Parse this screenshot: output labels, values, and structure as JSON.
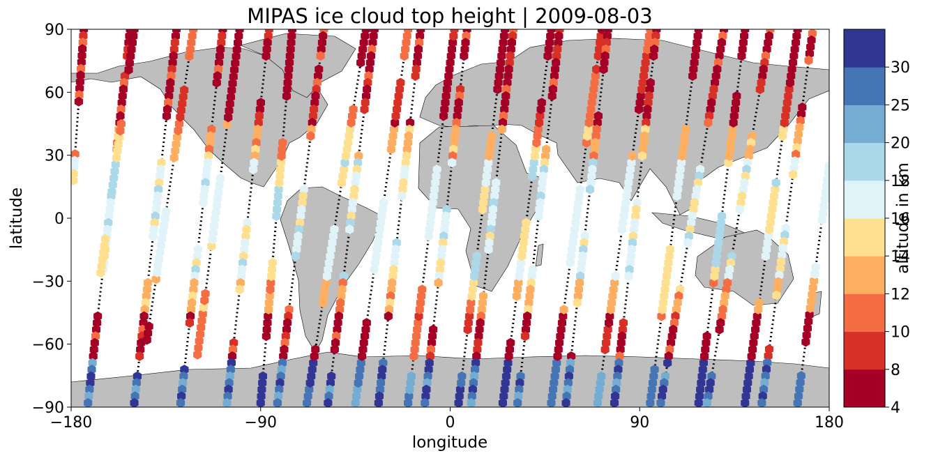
{
  "chart_data": {
    "type": "scatter",
    "title": "MIPAS ice cloud top height | 2009-08-03",
    "xlabel": "longitude",
    "ylabel": "latitude",
    "xlim": [
      -180,
      180
    ],
    "ylim": [
      -90,
      90
    ],
    "xticks": [
      -180,
      -90,
      0,
      90,
      180
    ],
    "xtick_labels": [
      "−180",
      "−90",
      "0",
      "90",
      "180"
    ],
    "yticks": [
      -90,
      -60,
      -30,
      0,
      30,
      60,
      90
    ],
    "ytick_labels": [
      "−90",
      "−60",
      "−30",
      "0",
      "30",
      "60",
      "90"
    ],
    "background_map": "world-coastlines",
    "land_color": "#bebebe",
    "colorbar": {
      "label": "altitude in km",
      "bounds": [
        4,
        8,
        10,
        12,
        14,
        16,
        18,
        20,
        25,
        30
      ],
      "tick_labels": [
        "4",
        "8",
        "10",
        "12",
        "14",
        "16",
        "18",
        "20",
        "25",
        "30"
      ],
      "colors": [
        "#a50026",
        "#d73027",
        "#f46d43",
        "#fdae61",
        "#fee090",
        "#e0f3f8",
        "#abd9e9",
        "#74add1",
        "#4575b4",
        "#313695"
      ]
    },
    "marker": "hexagon",
    "no_cloud_marker": "small-black-dot",
    "tracks": [
      {
        "lat0": 90,
        "lon0": -174,
        "lat1": 18,
        "lon1": -179
      },
      {
        "lat0": 90,
        "lon0": -152,
        "lat1": -88,
        "lon1": -172
      },
      {
        "lat0": -26,
        "lon0": -166,
        "lat1": 90,
        "lon1": -150
      },
      {
        "lat0": 90,
        "lon0": -130,
        "lat1": -88,
        "lon1": -150
      },
      {
        "lat0": -58,
        "lon0": -144,
        "lat1": 90,
        "lon1": -122
      },
      {
        "lat0": 90,
        "lon0": -108,
        "lat1": -88,
        "lon1": -128
      },
      {
        "lat0": -65,
        "lon0": -120,
        "lat1": 90,
        "lon1": -100
      },
      {
        "lat0": 90,
        "lon0": -86,
        "lat1": -88,
        "lon1": -106
      },
      {
        "lat0": -88,
        "lon0": -90,
        "lat1": 90,
        "lon1": -75
      },
      {
        "lat0": 90,
        "lon0": -60,
        "lat1": -88,
        "lon1": -82
      },
      {
        "lat0": -88,
        "lon0": -68,
        "lat1": 90,
        "lon1": -40
      },
      {
        "lat0": 90,
        "lon0": -36,
        "lat1": -88,
        "lon1": -58
      },
      {
        "lat0": -88,
        "lon0": -45,
        "lat1": 90,
        "lon1": -20
      },
      {
        "lat0": 90,
        "lon0": -14,
        "lat1": -88,
        "lon1": -34
      },
      {
        "lat0": -88,
        "lon0": -20,
        "lat1": 90,
        "lon1": 2
      },
      {
        "lat0": 90,
        "lon0": 8,
        "lat1": -88,
        "lon1": -12
      },
      {
        "lat0": -88,
        "lon0": 4,
        "lat1": 90,
        "lon1": 26
      },
      {
        "lat0": 90,
        "lon0": 30,
        "lat1": -88,
        "lon1": 10
      },
      {
        "lat0": -88,
        "lon0": 25,
        "lat1": 90,
        "lon1": 48
      },
      {
        "lat0": 90,
        "lon0": 52,
        "lat1": -88,
        "lon1": 32
      },
      {
        "lat0": -88,
        "lon0": 48,
        "lat1": 90,
        "lon1": 72
      },
      {
        "lat0": 90,
        "lon0": 75,
        "lat1": -88,
        "lon1": 55
      },
      {
        "lat0": -88,
        "lon0": 70,
        "lat1": 90,
        "lon1": 95
      },
      {
        "lat0": 90,
        "lon0": 98,
        "lat1": -88,
        "lon1": 78
      },
      {
        "lat0": -88,
        "lon0": 95,
        "lat1": 90,
        "lon1": 118
      },
      {
        "lat0": 90,
        "lon0": 130,
        "lat1": -88,
        "lon1": 100
      },
      {
        "lat0": -88,
        "lon0": 118,
        "lat1": 90,
        "lon1": 140
      },
      {
        "lat0": 90,
        "lon0": 152,
        "lat1": -88,
        "lon1": 122
      },
      {
        "lat0": -88,
        "lon0": 140,
        "lat1": 90,
        "lon1": 165
      },
      {
        "lat0": 88,
        "lon0": 172,
        "lat1": -88,
        "lon1": 148
      },
      {
        "lat0": -88,
        "lon0": 165,
        "lat1": 25,
        "lon1": 180
      }
    ]
  }
}
